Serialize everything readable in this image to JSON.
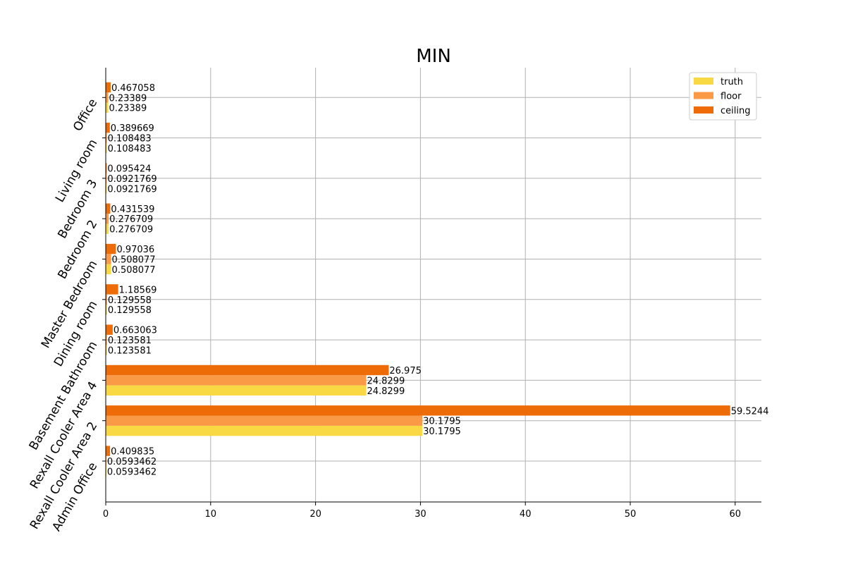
{
  "chart_data": {
    "type": "bar",
    "orientation": "horizontal",
    "title": "MIN",
    "xlabel": "",
    "ylabel": "",
    "xlim": [
      0,
      62.5
    ],
    "xticks": [
      0,
      10,
      20,
      30,
      40,
      50,
      60
    ],
    "grid": true,
    "legend_position": "top-right",
    "categories": [
      "Office",
      "Living room",
      "Bedroom 3",
      "Bedroom 2",
      "Master Bedroom",
      "Dining room",
      "Basement Bathroom",
      "Rexall Cooler Area 4",
      "Rexall Cooler Area 2",
      "Admin Office"
    ],
    "series": [
      {
        "name": "truth",
        "color": "#f9d943",
        "values": [
          0.23389,
          0.108483,
          0.0921769,
          0.276709,
          0.508077,
          0.129558,
          0.123581,
          24.8299,
          30.1795,
          0.0593462
        ],
        "labels": [
          "0.23389",
          "0.108483",
          "0.0921769",
          "0.276709",
          "0.508077",
          "0.129558",
          "0.123581",
          "24.8299",
          "30.1795",
          "0.0593462"
        ]
      },
      {
        "name": "floor",
        "color": "#fb9a46",
        "values": [
          0.23389,
          0.108483,
          0.0921769,
          0.276709,
          0.508077,
          0.129558,
          0.123581,
          24.8299,
          30.1795,
          0.0593462
        ],
        "labels": [
          "0.23389",
          "0.108483",
          "0.0921769",
          "0.276709",
          "0.508077",
          "0.129558",
          "0.123581",
          "24.8299",
          "30.1795",
          "0.0593462"
        ]
      },
      {
        "name": "ceiling",
        "color": "#ee6c07",
        "values": [
          0.467058,
          0.389669,
          0.095424,
          0.431539,
          0.97036,
          1.18569,
          0.663063,
          26.975,
          59.5244,
          0.409835
        ],
        "labels": [
          "0.467058",
          "0.389669",
          "0.095424",
          "0.431539",
          "0.97036",
          "1.18569",
          "0.663063",
          "26.975",
          "59.5244",
          "0.409835"
        ]
      }
    ]
  }
}
